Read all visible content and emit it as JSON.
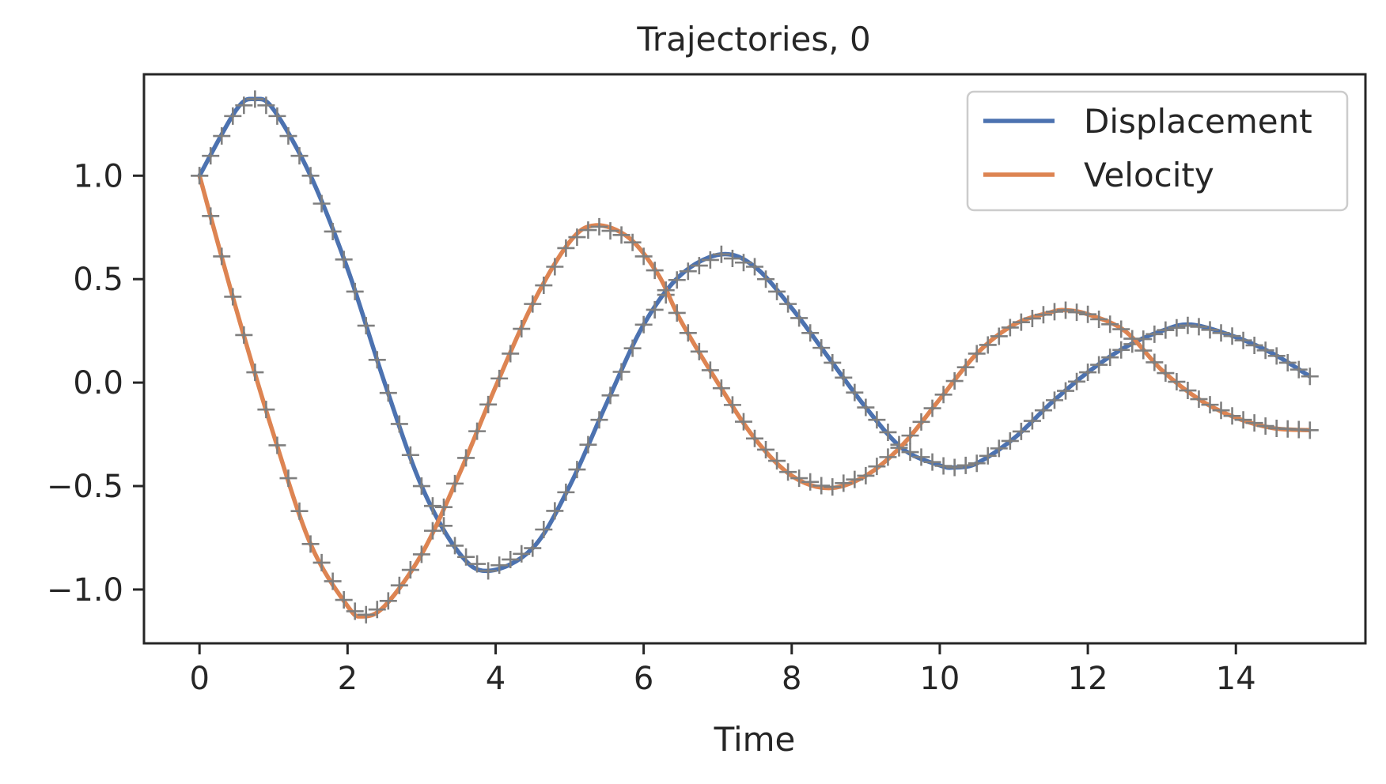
{
  "chart_data": {
    "type": "line",
    "title": "Trajectories, 0",
    "xlabel": "Time",
    "ylabel": "",
    "xlim": [
      -0.75,
      15.75
    ],
    "ylim": [
      -1.26,
      1.49
    ],
    "xticks": [
      0,
      2,
      4,
      6,
      8,
      10,
      12,
      14
    ],
    "xtick_labels": [
      "0",
      "2",
      "4",
      "6",
      "8",
      "10",
      "12",
      "14"
    ],
    "yticks": [
      -1.0,
      -0.5,
      0.0,
      0.5,
      1.0
    ],
    "ytick_labels": [
      "−1.0",
      "−0.5",
      "0.0",
      "0.5",
      "1.0"
    ],
    "grid": false,
    "legend": {
      "position": "top-right",
      "entries": [
        "Displacement",
        "Velocity"
      ]
    },
    "series": [
      {
        "name": "Displacement",
        "color": "#4c72b0",
        "x": [
          0,
          0.5,
          0.75,
          1.0,
          1.5,
          2.0,
          2.5,
          3.0,
          3.5,
          3.9,
          4.5,
          5.0,
          5.5,
          6.0,
          6.5,
          7.05,
          7.5,
          8.0,
          8.5,
          9.0,
          9.5,
          10.0,
          10.2,
          10.5,
          11.0,
          11.5,
          12.0,
          12.5,
          13.0,
          13.4,
          14.0,
          14.5,
          15.0
        ],
        "y": [
          1.0,
          1.32,
          1.37,
          1.32,
          1.0,
          0.55,
          -0.0,
          -0.5,
          -0.82,
          -0.91,
          -0.8,
          -0.5,
          -0.1,
          0.28,
          0.52,
          0.62,
          0.56,
          0.36,
          0.12,
          -0.12,
          -0.32,
          -0.4,
          -0.41,
          -0.39,
          -0.27,
          -0.1,
          0.05,
          0.17,
          0.25,
          0.28,
          0.22,
          0.14,
          0.03
        ]
      },
      {
        "name": "Velocity",
        "color": "#dd8452",
        "x": [
          0,
          0.5,
          1.0,
          1.5,
          2.0,
          2.2,
          2.5,
          3.0,
          3.5,
          4.0,
          4.5,
          5.0,
          5.35,
          5.8,
          6.2,
          6.5,
          7.0,
          7.5,
          8.0,
          8.5,
          9.0,
          9.5,
          10.0,
          10.5,
          11.0,
          11.5,
          11.7,
          12.0,
          12.5,
          13.0,
          13.5,
          14.0,
          14.5,
          15.0
        ],
        "y": [
          1.0,
          0.35,
          -0.25,
          -0.78,
          -1.08,
          -1.13,
          -1.08,
          -0.83,
          -0.45,
          -0.02,
          0.38,
          0.68,
          0.76,
          0.7,
          0.52,
          0.3,
          0.0,
          -0.27,
          -0.45,
          -0.51,
          -0.45,
          -0.3,
          -0.08,
          0.14,
          0.28,
          0.34,
          0.35,
          0.33,
          0.25,
          0.06,
          -0.08,
          -0.17,
          -0.22,
          -0.23
        ]
      }
    ]
  }
}
